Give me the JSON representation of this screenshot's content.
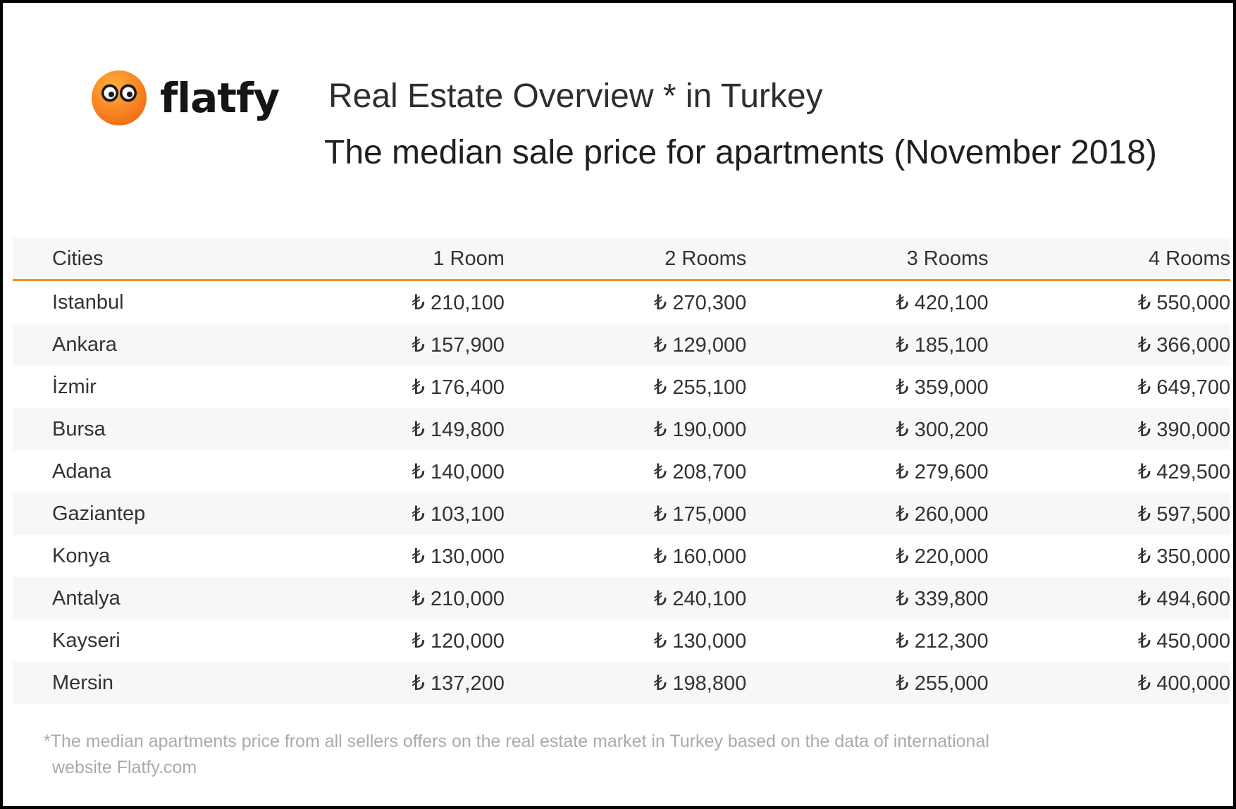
{
  "logo": {
    "text": "flatfy"
  },
  "header": {
    "title": "Real Estate Overview * in Turkey",
    "subtitle": "The median sale price for apartments (November 2018)"
  },
  "colors": {
    "accent": "#f58a1f",
    "header_bg": "#f7f7f7",
    "text": "#333333",
    "footnote": "#aaaaaa"
  },
  "chart_data": {
    "type": "table",
    "columns": [
      "Cities",
      "1 Room",
      "2 Rooms",
      "3 Rooms",
      "4 Rooms"
    ],
    "rows": [
      [
        "Istanbul",
        "₺ 210,100",
        "₺ 270,300",
        "₺ 420,100",
        "₺ 550,000"
      ],
      [
        "Ankara",
        "₺ 157,900",
        "₺ 129,000",
        "₺ 185,100",
        "₺ 366,000"
      ],
      [
        "İzmir",
        "₺ 176,400",
        "₺ 255,100",
        "₺ 359,000",
        "₺ 649,700"
      ],
      [
        "Bursa",
        "₺ 149,800",
        "₺ 190,000",
        "₺ 300,200",
        "₺ 390,000"
      ],
      [
        "Adana",
        "₺ 140,000",
        "₺ 208,700",
        "₺ 279,600",
        "₺ 429,500"
      ],
      [
        "Gaziantep",
        "₺ 103,100",
        "₺ 175,000",
        "₺ 260,000",
        "₺ 597,500"
      ],
      [
        "Konya",
        "₺ 130,000",
        "₺ 160,000",
        "₺ 220,000",
        "₺ 350,000"
      ],
      [
        "Antalya",
        "₺ 210,000",
        "₺ 240,100",
        "₺ 339,800",
        "₺ 494,600"
      ],
      [
        "Kayseri",
        "₺ 120,000",
        "₺ 130,000",
        "₺ 212,300",
        "₺ 450,000"
      ],
      [
        "Mersin",
        "₺ 137,200",
        "₺ 198,800",
        "₺ 255,000",
        "₺ 400,000"
      ]
    ]
  },
  "footnote": {
    "line1": "*The median apartments price from all sellers offers on the real estate market in Turkey based on the data of international",
    "line2": "website Flatfy.com"
  }
}
